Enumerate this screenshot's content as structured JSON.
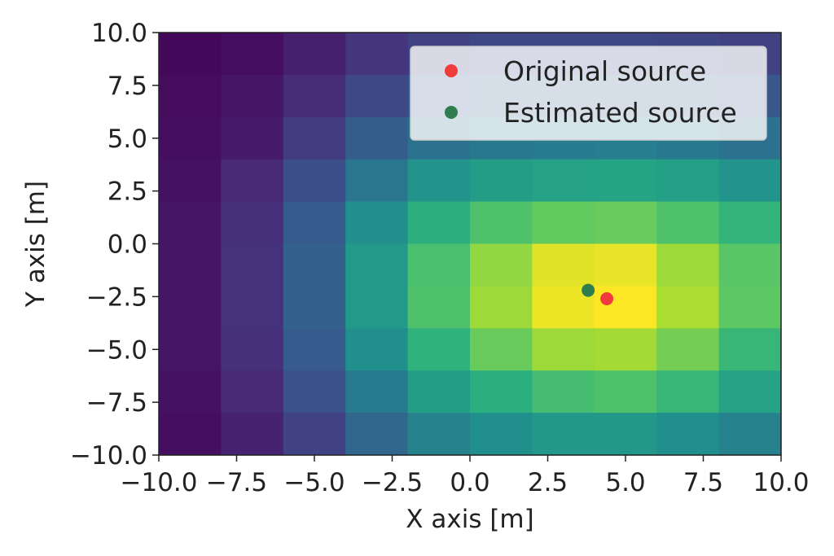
{
  "chart_data": {
    "type": "heatmap",
    "xlabel": "X axis [m]",
    "ylabel": "Y axis [m]",
    "xlim": [
      -10,
      10
    ],
    "ylim": [
      -10,
      10
    ],
    "grid": false,
    "colormap": "viridis",
    "color_range": [
      0,
      1
    ],
    "x_edges": [
      -10,
      -8,
      -6,
      -4,
      -2,
      0,
      2,
      4,
      6,
      8,
      10
    ],
    "y_edges": [
      -10,
      -8,
      -6,
      -4,
      -2,
      0,
      2,
      4,
      6,
      8,
      10
    ],
    "z_rows_top_to_bottom": [
      [
        0.02,
        0.04,
        0.09,
        0.16,
        0.2,
        0.22,
        0.22,
        0.22,
        0.21,
        0.2
      ],
      [
        0.03,
        0.06,
        0.13,
        0.22,
        0.28,
        0.3,
        0.31,
        0.31,
        0.3,
        0.28
      ],
      [
        0.04,
        0.08,
        0.18,
        0.3,
        0.38,
        0.41,
        0.42,
        0.43,
        0.41,
        0.38
      ],
      [
        0.05,
        0.12,
        0.24,
        0.4,
        0.52,
        0.56,
        0.58,
        0.59,
        0.57,
        0.52
      ],
      [
        0.06,
        0.14,
        0.29,
        0.5,
        0.64,
        0.72,
        0.76,
        0.77,
        0.72,
        0.66
      ],
      [
        0.06,
        0.15,
        0.31,
        0.54,
        0.71,
        0.84,
        0.96,
        0.97,
        0.86,
        0.74
      ],
      [
        0.06,
        0.15,
        0.31,
        0.54,
        0.72,
        0.86,
        0.98,
        1.0,
        0.88,
        0.75
      ],
      [
        0.06,
        0.14,
        0.29,
        0.5,
        0.65,
        0.77,
        0.86,
        0.87,
        0.79,
        0.67
      ],
      [
        0.05,
        0.12,
        0.25,
        0.42,
        0.56,
        0.64,
        0.7,
        0.72,
        0.67,
        0.58
      ],
      [
        0.04,
        0.1,
        0.2,
        0.34,
        0.45,
        0.5,
        0.53,
        0.53,
        0.5,
        0.45
      ]
    ],
    "xticks": [
      -10.0,
      -7.5,
      -5.0,
      -2.5,
      0.0,
      2.5,
      5.0,
      7.5,
      10.0
    ],
    "xtick_labels": [
      "−10.0",
      "−7.5",
      "−5.0",
      "−2.5",
      "0.0",
      "2.5",
      "5.0",
      "7.5",
      "10.0"
    ],
    "yticks": [
      10.0,
      7.5,
      5.0,
      2.5,
      0.0,
      -2.5,
      -5.0,
      -7.5,
      -10.0
    ],
    "ytick_labels": [
      "10.0",
      "7.5",
      "5.0",
      "2.5",
      "0.0",
      "−2.5",
      "−5.0",
      "−7.5",
      "−10.0"
    ],
    "points": [
      {
        "name": "Original source",
        "x": 4.4,
        "y": -2.6,
        "color": "#ef3b3b"
      },
      {
        "name": "Estimated source",
        "x": 3.8,
        "y": -2.2,
        "color": "#2e7d4f"
      }
    ],
    "legend": {
      "position": "upper-right",
      "entries": [
        {
          "label": "Original source",
          "color": "#ef3b3b"
        },
        {
          "label": "Estimated source",
          "color": "#2e7d4f"
        }
      ]
    }
  }
}
